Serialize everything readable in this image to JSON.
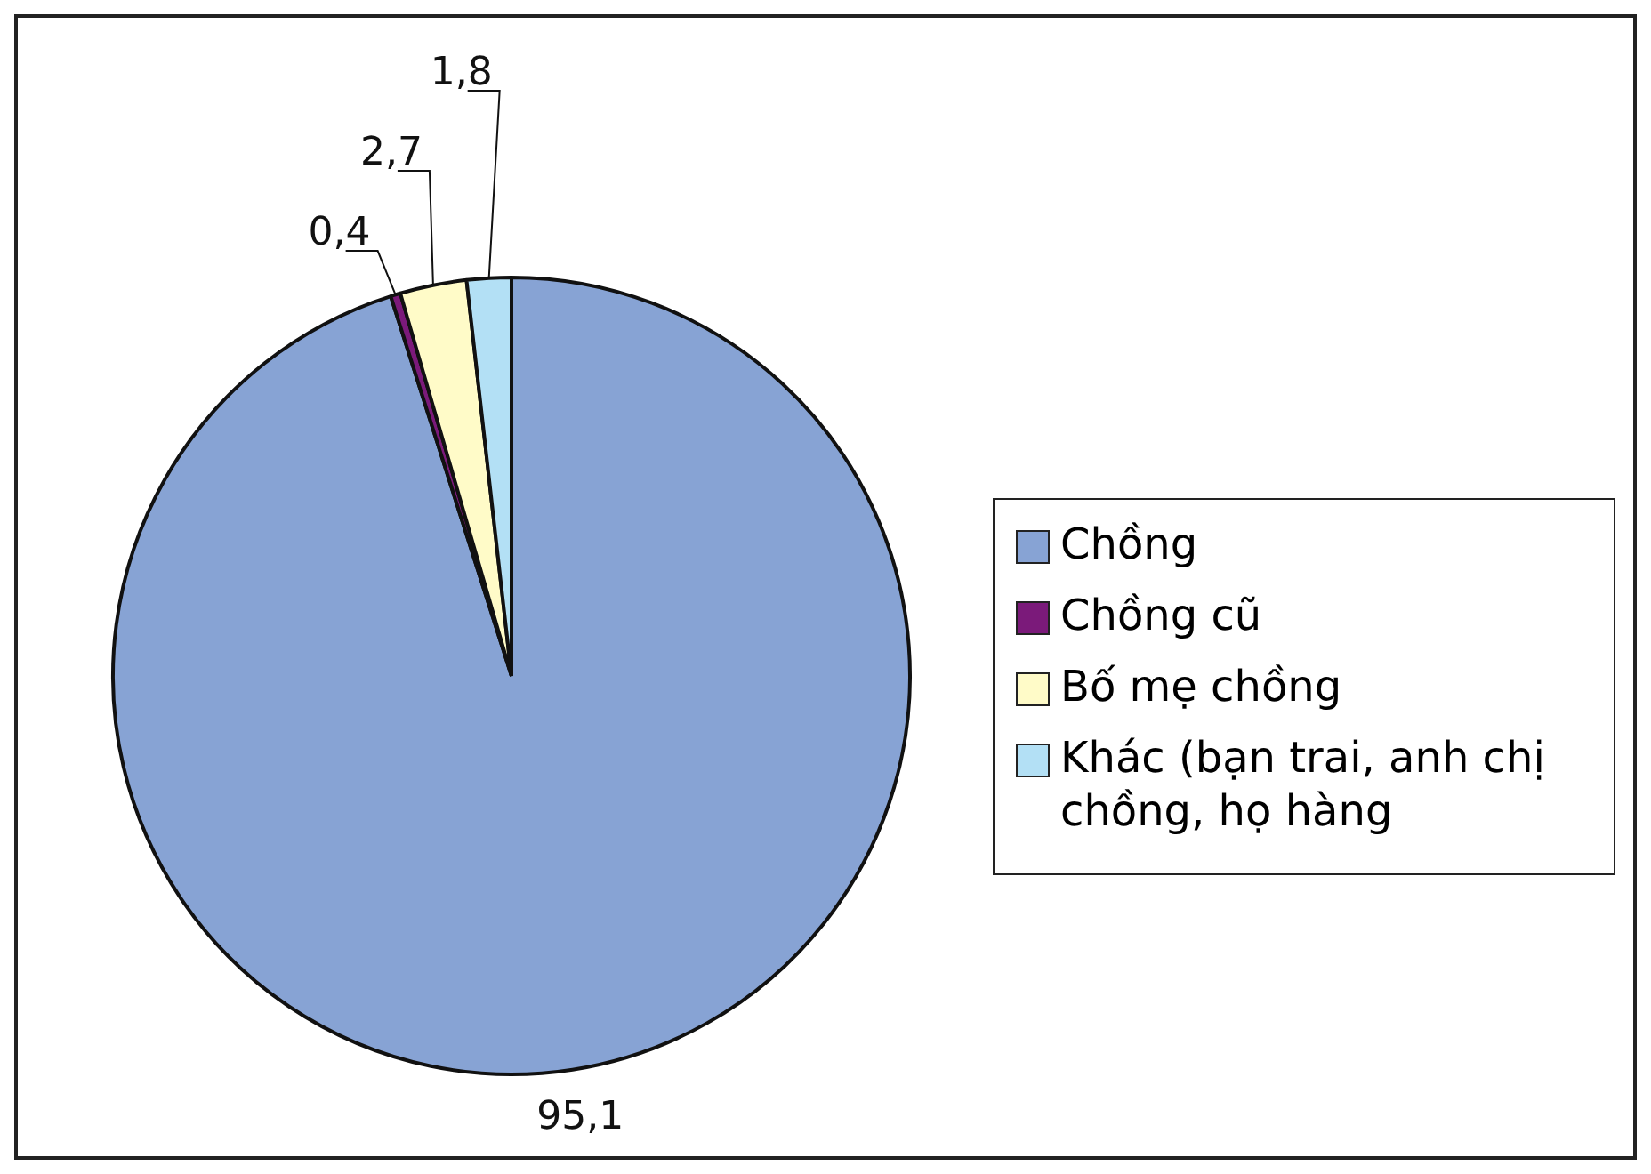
{
  "chart_data": {
    "type": "pie",
    "categories": [
      "Chồng",
      "Chồng cũ",
      "Bố mẹ chồng",
      "Khác (bạn trai, anh chị chồng, họ hàng"
    ],
    "values": [
      95.1,
      0.4,
      2.7,
      1.8
    ],
    "colors": [
      "#87a3d4",
      "#7b1a7a",
      "#fffbc8",
      "#b3e0f5"
    ],
    "value_labels": [
      "95,1",
      "0,4",
      "2,7",
      "1,8"
    ],
    "legend": "right"
  }
}
